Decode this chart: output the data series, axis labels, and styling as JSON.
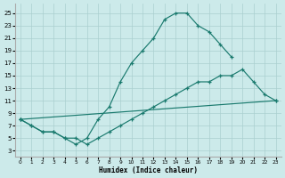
{
  "xlabel": "Humidex (Indice chaleur)",
  "bg_color": "#cceaea",
  "grid_color": "#aacfcf",
  "line_color": "#1a7a6e",
  "xlim": [
    -0.5,
    23.5
  ],
  "ylim": [
    2.0,
    26.5
  ],
  "xticks": [
    0,
    1,
    2,
    3,
    4,
    5,
    6,
    7,
    8,
    9,
    10,
    11,
    12,
    13,
    14,
    15,
    16,
    17,
    18,
    19,
    20,
    21,
    22,
    23
  ],
  "yticks": [
    3,
    5,
    7,
    9,
    11,
    13,
    15,
    17,
    19,
    21,
    23,
    25
  ],
  "line1_x": [
    0,
    1,
    2,
    3,
    4,
    5,
    6,
    7,
    8,
    9,
    10,
    11,
    12,
    13,
    14,
    15,
    16,
    17,
    18,
    19
  ],
  "line1_y": [
    8,
    7,
    6,
    6,
    5,
    4,
    5,
    8,
    10,
    14,
    17,
    19,
    21,
    24,
    25,
    25,
    23,
    22,
    20,
    18
  ],
  "line2_x": [
    0,
    1,
    2,
    3,
    4,
    5,
    6,
    7,
    8,
    9,
    10,
    11,
    12,
    13,
    14,
    15,
    16,
    17,
    18,
    19,
    20,
    21,
    22,
    23
  ],
  "line2_y": [
    8,
    7,
    6,
    6,
    5,
    5,
    4,
    5,
    6,
    7,
    8,
    9,
    10,
    11,
    12,
    13,
    14,
    14,
    15,
    15,
    16,
    14,
    12,
    11
  ],
  "line3_x": [
    0,
    23
  ],
  "line3_y": [
    8,
    11
  ]
}
